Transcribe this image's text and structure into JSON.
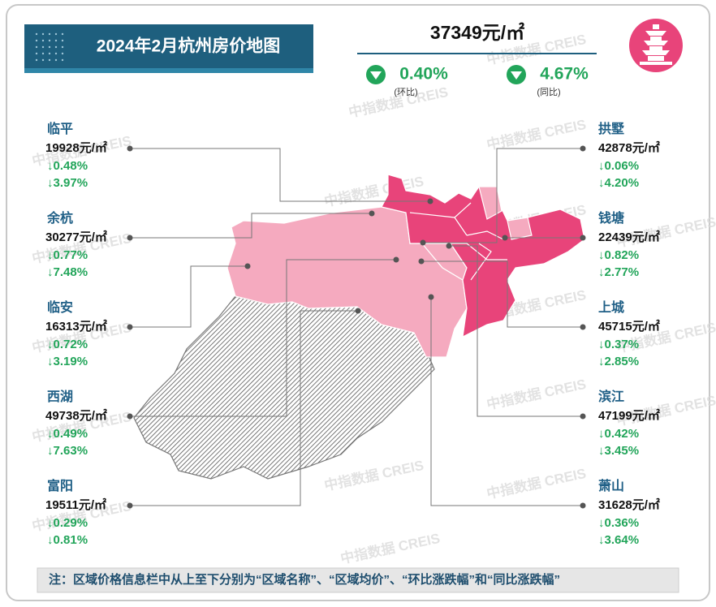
{
  "header": {
    "title": "2024年2月杭州房价地图"
  },
  "summary": {
    "price": "37349元/㎡",
    "mom": "0.40%",
    "mom_label": "(环比)",
    "yoy": "4.67%",
    "yoy_label": "(同比)"
  },
  "districts": [
    {
      "name": "临平",
      "price": "19928元/㎡",
      "mom": "↓0.48%",
      "yoy": "↓3.97%"
    },
    {
      "name": "余杭",
      "price": "30277元/㎡",
      "mom": "↓0.77%",
      "yoy": "↓7.48%"
    },
    {
      "name": "临安",
      "price": "16313元/㎡",
      "mom": "↓0.72%",
      "yoy": "↓3.19%"
    },
    {
      "name": "西湖",
      "price": "49738元/㎡",
      "mom": "↓0.49%",
      "yoy": "↓7.63%"
    },
    {
      "name": "富阳",
      "price": "19511元/㎡",
      "mom": "↓0.29%",
      "yoy": "↓0.81%"
    },
    {
      "name": "拱墅",
      "price": "42878元/㎡",
      "mom": "↓0.06%",
      "yoy": "↓4.20%"
    },
    {
      "name": "钱塘",
      "price": "22439元/㎡",
      "mom": "↓0.82%",
      "yoy": "↓2.77%"
    },
    {
      "name": "上城",
      "price": "45715元/㎡",
      "mom": "↓0.37%",
      "yoy": "↓2.85%"
    },
    {
      "name": "滨江",
      "price": "47199元/㎡",
      "mom": "↓0.42%",
      "yoy": "↓3.45%"
    },
    {
      "name": "萧山",
      "price": "31628元/㎡",
      "mom": "↓0.36%",
      "yoy": "↓3.64%"
    }
  ],
  "watermark": "中指数据 CREIS",
  "note": "注：区域价格信息栏中从上至下分别为“区域名称”、“区域均价”、“环比涨跌幅”和“同比涨跌幅”"
}
